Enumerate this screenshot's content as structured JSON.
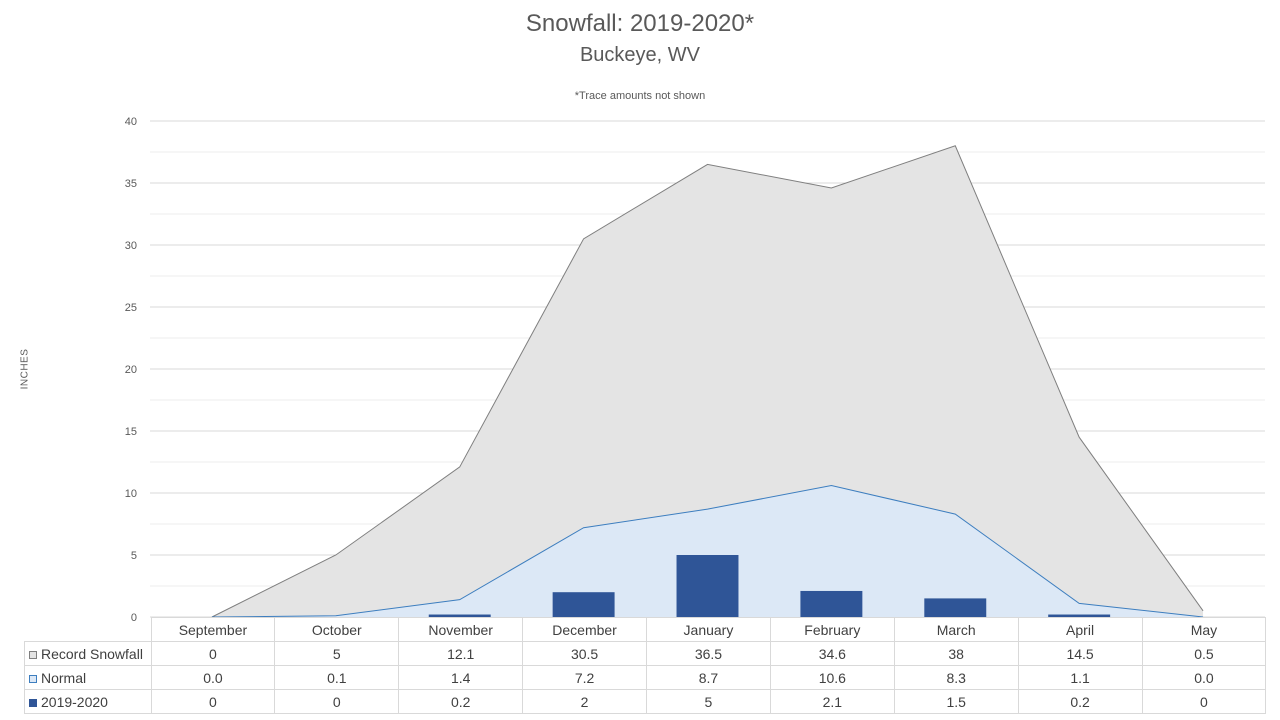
{
  "chart_data": {
    "type": "area",
    "title": "Snowfall: 2019-2020*",
    "subtitle": "Buckeye, WV",
    "note": "*Trace amounts not shown",
    "ylabel": "INCHES",
    "ylim": [
      0,
      40
    ],
    "yticks": [
      0,
      5,
      10,
      15,
      20,
      25,
      30,
      35,
      40
    ],
    "grid": true,
    "legend_placement": "data-table",
    "categories": [
      "September",
      "October",
      "November",
      "December",
      "January",
      "February",
      "March",
      "April",
      "May"
    ],
    "series": [
      {
        "name": "Record Snowfall",
        "kind": "area",
        "fill": "#e4e4e4",
        "stroke": "#7f7f7f",
        "values": [
          0,
          5,
          12.1,
          30.5,
          36.5,
          34.6,
          38,
          14.5,
          0.5
        ],
        "labels": [
          "0",
          "5",
          "12.1",
          "30.5",
          "36.5",
          "34.6",
          "38",
          "14.5",
          "0.5"
        ]
      },
      {
        "name": "Normal",
        "kind": "area",
        "fill": "#dce8f6",
        "stroke": "#3d7ebf",
        "values": [
          0.0,
          0.1,
          1.4,
          7.2,
          8.7,
          10.6,
          8.3,
          1.1,
          0.0
        ],
        "labels": [
          "0.0",
          "0.1",
          "1.4",
          "7.2",
          "8.7",
          "10.6",
          "8.3",
          "1.1",
          "0.0"
        ]
      },
      {
        "name": "2019-2020",
        "kind": "bar",
        "fill": "#2f5597",
        "stroke": "#2f5597",
        "values": [
          0,
          0,
          0.2,
          2,
          5,
          2.1,
          1.5,
          0.2,
          0
        ],
        "labels": [
          "0",
          "0",
          "0.2",
          "2",
          "5",
          "2.1",
          "1.5",
          "0.2",
          "0"
        ]
      }
    ]
  }
}
